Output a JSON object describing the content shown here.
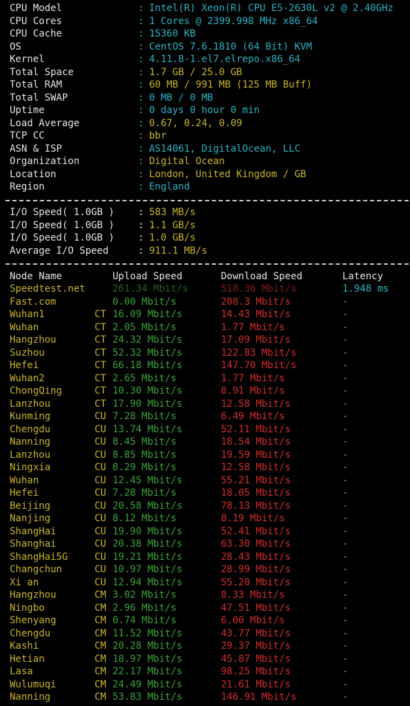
{
  "delimiter": ":",
  "system_info": [
    {
      "label": "CPU Model",
      "value": "Intel(R) Xeon(R) CPU E5-2630L v2 @ 2.40GHz",
      "color": "#2ab3c4"
    },
    {
      "label": "CPU Cores",
      "value": "1 Cores @ 2399.998 MHz x86_64",
      "color": "#2ab3c4"
    },
    {
      "label": "CPU Cache",
      "value": "15360 KB",
      "color": "#2ab3c4"
    },
    {
      "label": "OS",
      "value": "CentOS 7.6.1810 (64 Bit) KVM",
      "color": "#2ab3c4"
    },
    {
      "label": "Kernel",
      "value": "4.11.8-1.el7.elrepo.x86_64",
      "color": "#2ab3c4"
    },
    {
      "label": "Total Space",
      "value": "1.7 GB / 25.0 GB",
      "color": "#c9b52a"
    },
    {
      "label": "Total RAM",
      "value": "60 MB / 991 MB (125 MB Buff)",
      "color": "#c9b52a"
    },
    {
      "label": "Total SWAP",
      "value": "0 MB / 0 MB",
      "color": "#2ab3c4"
    },
    {
      "label": "Uptime",
      "value": "0 days 0 hour 0 min",
      "color": "#2ab3c4"
    },
    {
      "label": "Load Average",
      "value": "0.67, 0.24, 0.09",
      "color": "#c9b52a"
    },
    {
      "label": "TCP CC",
      "value": "bbr",
      "color": "#c9b52a"
    },
    {
      "label": "ASN & ISP",
      "value": "AS14061, DigitalOcean, LLC",
      "color": "#2ab3c4"
    },
    {
      "label": "Organization",
      "value": "Digital Ocean",
      "color": "#c9b52a"
    },
    {
      "label": "Location",
      "value": "London, United Kingdom / GB",
      "color": "#c9b52a"
    },
    {
      "label": "Region",
      "value": "England",
      "color": "#2ab3c4"
    }
  ],
  "io_speed": [
    {
      "label": "I/O Speed( 1.0GB )",
      "value": "583 MB/s"
    },
    {
      "label": "I/O Speed( 1.0GB )",
      "value": "1.1 GB/s"
    },
    {
      "label": "I/O Speed( 1.0GB )",
      "value": "1.0 GB/s"
    },
    {
      "label": "Average I/O Speed",
      "value": "911.1 MB/s"
    }
  ],
  "speed_table": {
    "headers": [
      "Node Name",
      "Upload Speed",
      "Download Speed",
      "Latency"
    ],
    "rows": [
      [
        "Speedtest.net",
        null,
        "261.34 Mbit/s",
        "518.36 Mbit/s",
        "1.948 ms"
      ],
      [
        "Fast.com",
        null,
        "0.00 Mbit/s",
        "208.3 Mbit/s",
        "-"
      ],
      [
        "Wuhan1",
        "CT",
        "16.09 Mbit/s",
        "14.43 Mbit/s",
        "-"
      ],
      [
        "Wuhan",
        "CT",
        "2.05 Mbit/s",
        "1.77 Mbit/s",
        "-"
      ],
      [
        "Hangzhou",
        "CT",
        "24.32 Mbit/s",
        "17.09 Mbit/s",
        "-"
      ],
      [
        "Suzhou",
        "CT",
        "52.32 Mbit/s",
        "122.83 Mbit/s",
        "-"
      ],
      [
        "Hefei",
        "CT",
        "66.18 Mbit/s",
        "147.70 Mbit/s",
        "-"
      ],
      [
        "Wuhan2",
        "CT",
        "2.65 Mbit/s",
        "1.77 Mbit/s",
        "-"
      ],
      [
        "ChongQing",
        "CT",
        "10.30 Mbit/s",
        "8.91 Mbit/s",
        "-"
      ],
      [
        "Lanzhou",
        "CT",
        "17.90 Mbit/s",
        "12.58 Mbit/s",
        "-"
      ],
      [
        "Kunming",
        "CU",
        "7.28 Mbit/s",
        "6.49 Mbit/s",
        "-"
      ],
      [
        "Chengdu",
        "CU",
        "13.74 Mbit/s",
        "52.11 Mbit/s",
        "-"
      ],
      [
        "Nanning",
        "CU",
        "8.45 Mbit/s",
        "18.54 Mbit/s",
        "-"
      ],
      [
        "Lanzhou",
        "CU",
        "8.85 Mbit/s",
        "19.59 Mbit/s",
        "-"
      ],
      [
        "Ningxia",
        "CU",
        "8.29 Mbit/s",
        "12.58 Mbit/s",
        "-"
      ],
      [
        "Wuhan",
        "CU",
        "12.45 Mbit/s",
        "55.21 Mbit/s",
        "-"
      ],
      [
        "Hefei",
        "CU",
        "7.28 Mbit/s",
        "18.05 Mbit/s",
        "-"
      ],
      [
        "Beijing",
        "CU",
        "20.58 Mbit/s",
        "78.13 Mbit/s",
        "-"
      ],
      [
        "Nanjing",
        "CU",
        "8.12 Mbit/s",
        "8.19 Mbit/s",
        "-"
      ],
      [
        "ShangHai",
        "CU",
        "19.90 Mbit/s",
        "52.41 Mbit/s",
        "-"
      ],
      [
        "Shanghai",
        "CU",
        "20.38 Mbit/s",
        "63.30 Mbit/s",
        "-"
      ],
      [
        "ShangHai5G",
        "CU",
        "19.21 Mbit/s",
        "28.43 Mbit/s",
        "-"
      ],
      [
        "Changchun",
        "CU",
        "10.97 Mbit/s",
        "28.99 Mbit/s",
        "-"
      ],
      [
        "Xi an",
        "CU",
        "12.94 Mbit/s",
        "55.20 Mbit/s",
        "-"
      ],
      [
        "Hangzhou",
        "CM",
        "3.02 Mbit/s",
        "8.33 Mbit/s",
        "-"
      ],
      [
        "Ningbo",
        "CM",
        "2.96 Mbit/s",
        "47.51 Mbit/s",
        "-"
      ],
      [
        "Shenyang",
        "CM",
        "0.74 Mbit/s",
        "6.00 Mbit/s",
        "-"
      ],
      [
        "Chengdu",
        "CM",
        "11.52 Mbit/s",
        "43.77 Mbit/s",
        "-"
      ],
      [
        "Kashi",
        "CM",
        "20.28 Mbit/s",
        "29.37 Mbit/s",
        "-"
      ],
      [
        "Hetian",
        "CM",
        "18.97 Mbit/s",
        "45.87 Mbit/s",
        "-"
      ],
      [
        "Lasa",
        "CM",
        "22.17 Mbit/s",
        "98.25 Mbit/s",
        "-"
      ],
      [
        "Wulumuqi",
        "CM",
        "24.49 Mbit/s",
        "21.61 Mbit/s",
        "-"
      ],
      [
        "Nanning",
        "CM",
        "53.83 Mbit/s",
        "146.91 Mbit/s",
        "-"
      ]
    ]
  }
}
